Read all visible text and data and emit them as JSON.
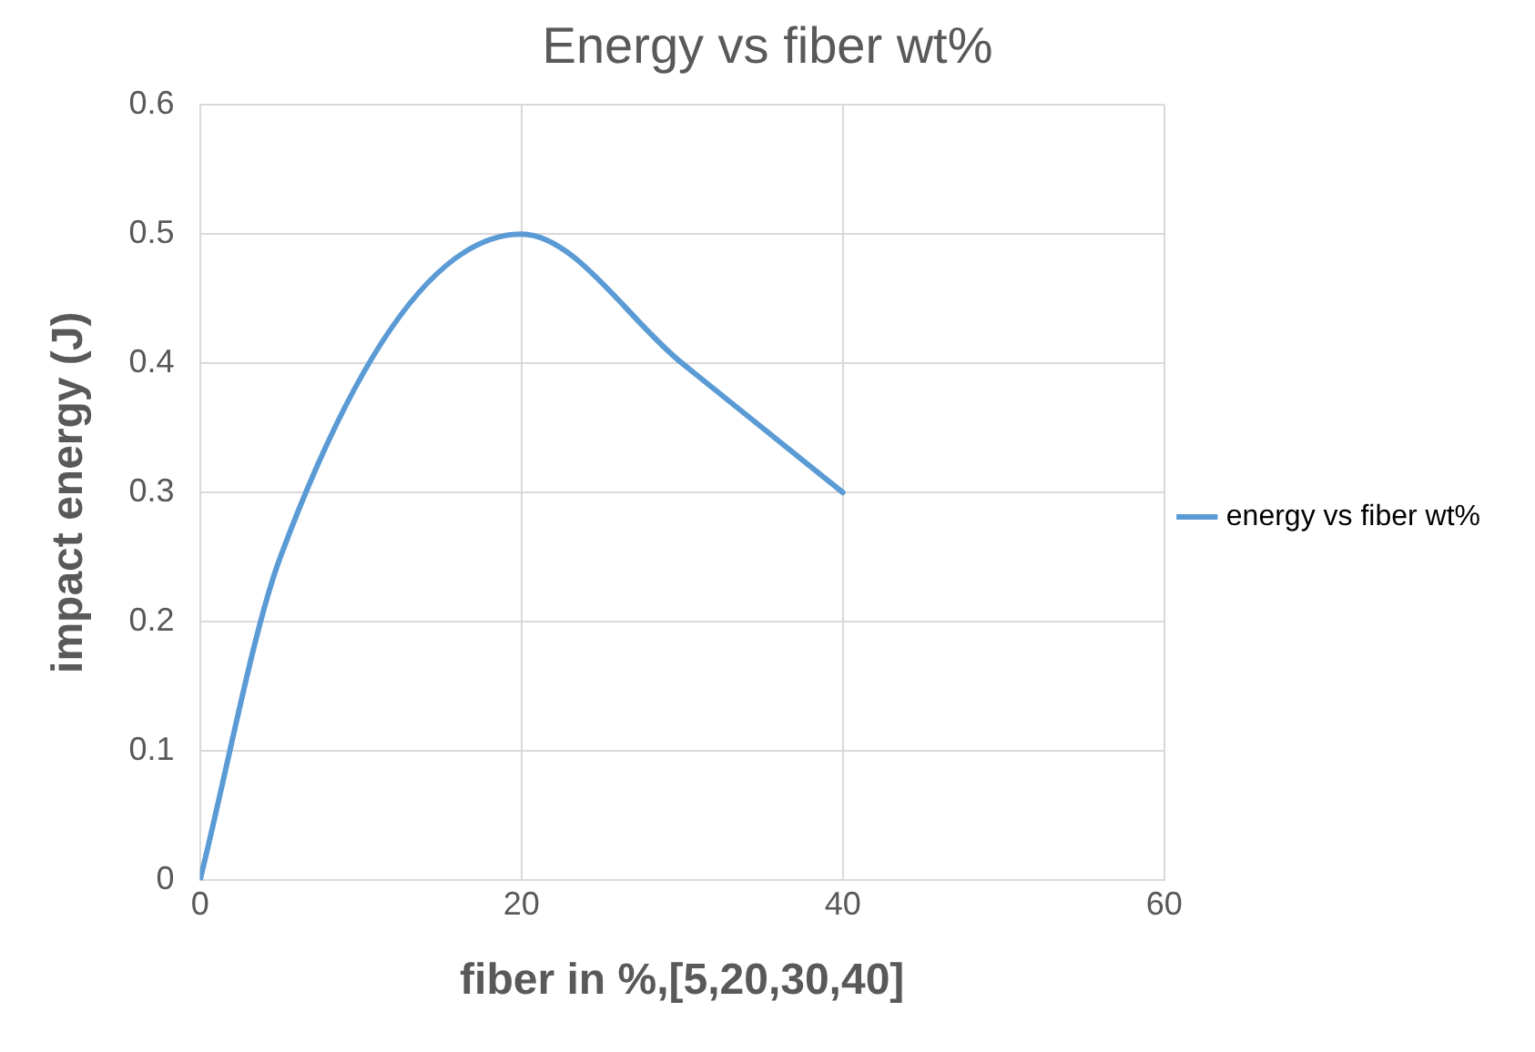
{
  "chart_data": {
    "type": "line",
    "title": "Energy vs fiber wt%",
    "xlabel": "fiber in %,[5,20,30,40]",
    "ylabel": "impact energy (J)",
    "x": [
      0,
      5,
      20,
      30,
      40
    ],
    "series": [
      {
        "name": "energy vs fiber wt%",
        "color": "#5b9bd5",
        "values": [
          0,
          0.25,
          0.5,
          0.4,
          0.3
        ]
      }
    ],
    "xlim": [
      0,
      60
    ],
    "xticks": [
      0,
      20,
      40,
      60
    ],
    "ylim": [
      0,
      0.6
    ],
    "yticks": [
      0,
      0.1,
      0.2,
      0.3,
      0.4,
      0.5,
      0.6
    ],
    "grid": true,
    "legend": "right",
    "marker": "none",
    "line_style": "solid"
  }
}
